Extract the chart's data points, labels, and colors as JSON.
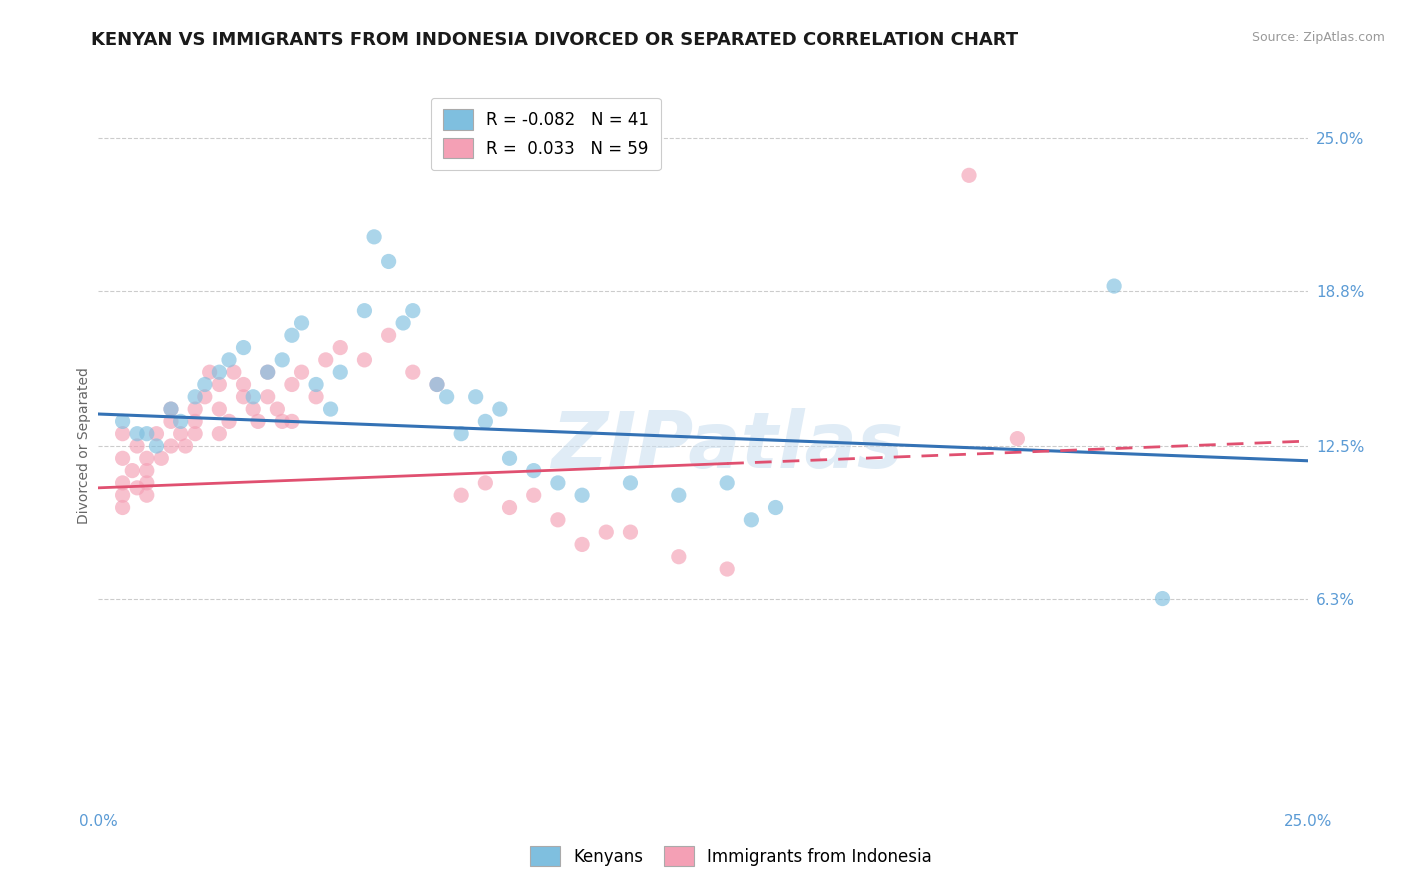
{
  "title": "KENYAN VS IMMIGRANTS FROM INDONESIA DIVORCED OR SEPARATED CORRELATION CHART",
  "source": "Source: ZipAtlas.com",
  "ylabel": "Divorced or Separated",
  "ytick_labels": [
    "25.0%",
    "18.8%",
    "12.5%",
    "6.3%"
  ],
  "ytick_values": [
    0.25,
    0.188,
    0.125,
    0.063
  ],
  "xmin": 0.0,
  "xmax": 0.25,
  "ymin": -0.02,
  "ymax": 0.27,
  "blue_color": "#7fbfdf",
  "pink_color": "#f4a0b5",
  "blue_line_color": "#3472b5",
  "pink_line_color": "#e05070",
  "legend_R_blue": "R = -0.082",
  "legend_N_blue": "N = 41",
  "legend_R_pink": "R =  0.033",
  "legend_N_pink": "N = 59",
  "watermark": "ZIPatlas",
  "blue_scatter_x": [
    0.005,
    0.008,
    0.01,
    0.012,
    0.015,
    0.017,
    0.02,
    0.022,
    0.025,
    0.027,
    0.03,
    0.032,
    0.035,
    0.038,
    0.04,
    0.042,
    0.045,
    0.048,
    0.05,
    0.055,
    0.057,
    0.06,
    0.063,
    0.065,
    0.07,
    0.072,
    0.075,
    0.078,
    0.08,
    0.083,
    0.085,
    0.09,
    0.095,
    0.1,
    0.11,
    0.12,
    0.13,
    0.135,
    0.14,
    0.21,
    0.22
  ],
  "blue_scatter_y": [
    0.135,
    0.13,
    0.13,
    0.125,
    0.14,
    0.135,
    0.145,
    0.15,
    0.155,
    0.16,
    0.165,
    0.145,
    0.155,
    0.16,
    0.17,
    0.175,
    0.15,
    0.14,
    0.155,
    0.18,
    0.21,
    0.2,
    0.175,
    0.18,
    0.15,
    0.145,
    0.13,
    0.145,
    0.135,
    0.14,
    0.12,
    0.115,
    0.11,
    0.105,
    0.11,
    0.105,
    0.11,
    0.095,
    0.1,
    0.19,
    0.063
  ],
  "pink_scatter_x": [
    0.005,
    0.005,
    0.005,
    0.005,
    0.005,
    0.007,
    0.008,
    0.008,
    0.01,
    0.01,
    0.01,
    0.01,
    0.012,
    0.013,
    0.015,
    0.015,
    0.015,
    0.017,
    0.018,
    0.02,
    0.02,
    0.02,
    0.022,
    0.023,
    0.025,
    0.025,
    0.025,
    0.027,
    0.028,
    0.03,
    0.03,
    0.032,
    0.033,
    0.035,
    0.035,
    0.037,
    0.038,
    0.04,
    0.04,
    0.042,
    0.045,
    0.047,
    0.05,
    0.055,
    0.06,
    0.065,
    0.07,
    0.075,
    0.08,
    0.085,
    0.09,
    0.095,
    0.1,
    0.105,
    0.11,
    0.12,
    0.13,
    0.18,
    0.19
  ],
  "pink_scatter_y": [
    0.13,
    0.12,
    0.11,
    0.105,
    0.1,
    0.115,
    0.125,
    0.108,
    0.12,
    0.115,
    0.11,
    0.105,
    0.13,
    0.12,
    0.14,
    0.135,
    0.125,
    0.13,
    0.125,
    0.14,
    0.135,
    0.13,
    0.145,
    0.155,
    0.15,
    0.14,
    0.13,
    0.135,
    0.155,
    0.15,
    0.145,
    0.14,
    0.135,
    0.155,
    0.145,
    0.14,
    0.135,
    0.15,
    0.135,
    0.155,
    0.145,
    0.16,
    0.165,
    0.16,
    0.17,
    0.155,
    0.15,
    0.105,
    0.11,
    0.1,
    0.105,
    0.095,
    0.085,
    0.09,
    0.09,
    0.08,
    0.075,
    0.235,
    0.128
  ],
  "blue_line_x0": 0.0,
  "blue_line_y0": 0.138,
  "blue_line_x1": 0.25,
  "blue_line_y1": 0.119,
  "pink_line_x0": 0.0,
  "pink_line_y0": 0.108,
  "pink_line_x_solid_end": 0.13,
  "pink_line_x1": 0.25,
  "pink_line_y1": 0.127,
  "grid_color": "#cccccc",
  "bg_color": "#ffffff",
  "tick_label_color": "#5b9bd5",
  "title_fontsize": 13,
  "label_fontsize": 10,
  "tick_fontsize": 11
}
